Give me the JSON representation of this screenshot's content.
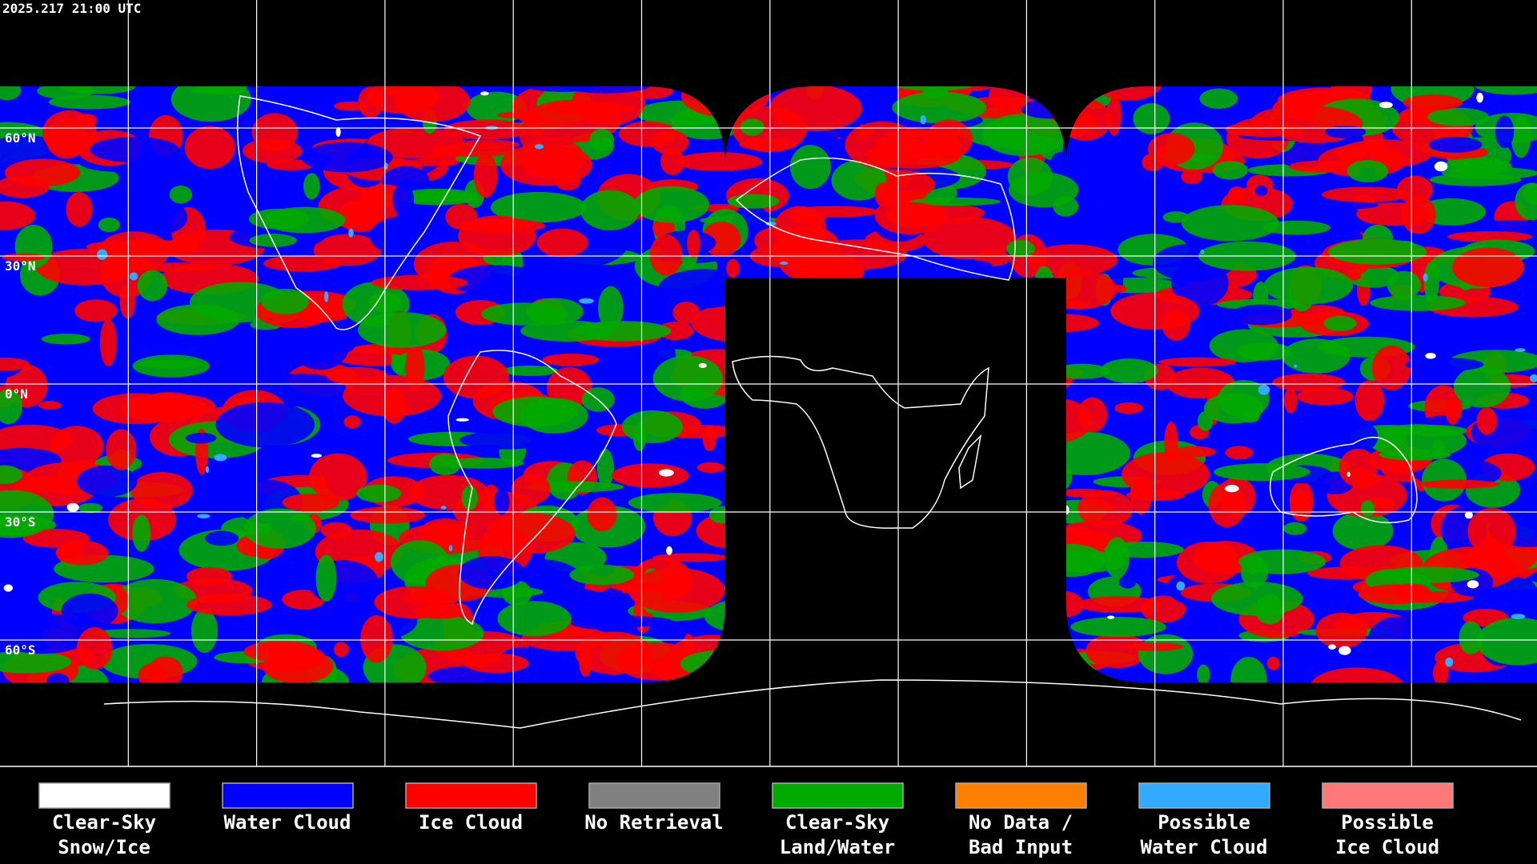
{
  "header": {
    "timestamp": "2025.217 21:00 UTC"
  },
  "map": {
    "latitude_labels": [
      "60°N",
      "30°N",
      "0°N",
      "30°S",
      "60°S"
    ]
  },
  "legend": [
    {
      "label": [
        "Clear-Sky",
        "Snow/Ice"
      ],
      "color": "#ffffff"
    },
    {
      "label": [
        "Water Cloud"
      ],
      "color": "#0000ff"
    },
    {
      "label": [
        "Ice Cloud"
      ],
      "color": "#ff0000"
    },
    {
      "label": [
        "No Retrieval"
      ],
      "color": "#808080"
    },
    {
      "label": [
        "Clear-Sky",
        "Land/Water"
      ],
      "color": "#00aa00"
    },
    {
      "label": [
        "No Data /",
        "Bad Input"
      ],
      "color": "#ff8000"
    },
    {
      "label": [
        "Possible",
        "Water Cloud"
      ],
      "color": "#33aaff"
    },
    {
      "label": [
        "Possible",
        "Ice Cloud"
      ],
      "color": "#ff7878"
    }
  ]
}
